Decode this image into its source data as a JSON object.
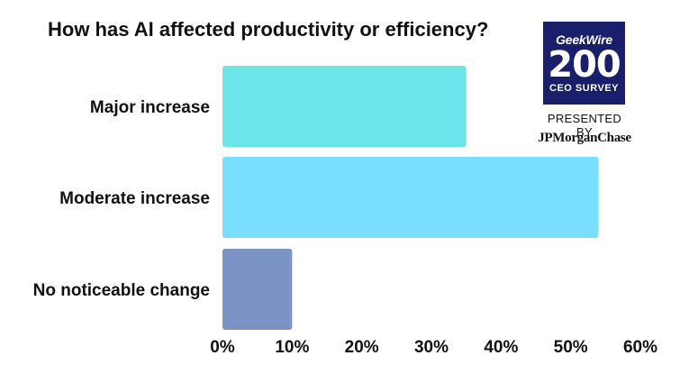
{
  "title": "How has AI affected productivity or efficiency?",
  "logo": {
    "brand": "GeekWire",
    "number": "200",
    "subtitle": "CEO SURVEY",
    "background_color": "#1a1f6b"
  },
  "presented_by": "PRESENTED BY",
  "sponsor": "JPMorganChase",
  "chart_data": {
    "type": "bar",
    "orientation": "horizontal",
    "categories": [
      "Major increase",
      "Moderate increase",
      "No noticeable change"
    ],
    "values": [
      35,
      54,
      10
    ],
    "colors": [
      "#6ce5e8",
      "#7adfff",
      "#7b93c5"
    ],
    "xlim": [
      0,
      60
    ],
    "xticks": [
      "0%",
      "10%",
      "20%",
      "30%",
      "40%",
      "50%",
      "60%"
    ],
    "grid": false,
    "legend": "none"
  }
}
